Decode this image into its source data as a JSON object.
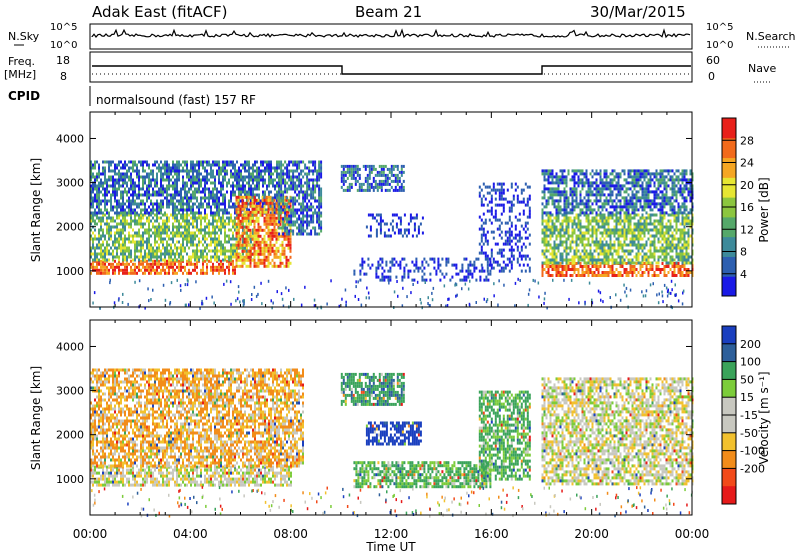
{
  "header": {
    "station": "Adak East (fitACF)",
    "beam": "Beam 21",
    "date": "30/Mar/2015"
  },
  "nsky_panel": {
    "left_label": "N.Sky",
    "left_ticks": [
      "10^5",
      "10^0"
    ],
    "right_ticks": [
      "10^5",
      "10^0"
    ],
    "right_label": "N.Search"
  },
  "freq_panel": {
    "left_label_1": "Freq.",
    "left_label_2": "[MHz]",
    "left_ticks": [
      "18",
      "8"
    ],
    "right_ticks": [
      "60",
      "0"
    ],
    "right_label": "Nave"
  },
  "cpid": {
    "label": "CPID",
    "text": "normalsound (fast) 157 RF"
  },
  "x_axis": {
    "ticks": [
      "00:00",
      "04:00",
      "08:00",
      "12:00",
      "16:00",
      "20:00",
      "00:00"
    ],
    "title": "Time UT"
  },
  "colors": {
    "power_scale": [
      "#1a1ae6",
      "#2d5fb0",
      "#3d8a9a",
      "#55a86a",
      "#8cc63f",
      "#e6e633",
      "#f5a623",
      "#f26a1b",
      "#e8201a"
    ],
    "velocity_scale": [
      "#1a3fbf",
      "#2d5f9a",
      "#3aa35a",
      "#7ccc3a",
      "#c8c8c0",
      "#c8c8c0",
      "#f2c12e",
      "#f28c1a",
      "#f24a1a",
      "#e61a1a"
    ]
  },
  "chart_data": [
    {
      "type": "heatmap",
      "panel": "power",
      "ylabel": "Slant Range [km]",
      "y_ticks": [
        "1000",
        "2000",
        "3000",
        "4000"
      ],
      "ylim": [
        180,
        4600
      ],
      "xlim_hours": [
        0,
        24
      ],
      "colorbar_label": "Power [dB]",
      "colorbar_ticks": [
        "4",
        "8",
        "12",
        "16",
        "20",
        "24",
        "28"
      ],
      "colorbar_range": [
        0,
        32
      ],
      "regions": [
        {
          "t0": 0.0,
          "t1": 5.8,
          "r0": 950,
          "r1": 1250,
          "level": "high"
        },
        {
          "t0": 0.0,
          "t1": 6.5,
          "r0": 1250,
          "r1": 2300,
          "level": "mid"
        },
        {
          "t0": 0.0,
          "t1": 7.5,
          "r0": 2300,
          "r1": 3500,
          "level": "low"
        },
        {
          "t0": 5.8,
          "t1": 8.0,
          "r0": 1100,
          "r1": 2700,
          "level": "high_band"
        },
        {
          "t0": 7.5,
          "t1": 9.2,
          "r0": 1800,
          "r1": 3500,
          "level": "low"
        },
        {
          "t0": 10.0,
          "t1": 12.5,
          "r0": 2800,
          "r1": 3400,
          "level": "low"
        },
        {
          "t0": 11.0,
          "t1": 13.3,
          "r0": 1800,
          "r1": 2300,
          "level": "weak"
        },
        {
          "t0": 10.5,
          "t1": 16.0,
          "r0": 800,
          "r1": 1300,
          "level": "weak"
        },
        {
          "t0": 15.5,
          "t1": 17.5,
          "r0": 1000,
          "r1": 3000,
          "level": "weak"
        },
        {
          "t0": 18.0,
          "t1": 24.0,
          "r0": 900,
          "r1": 1200,
          "level": "high"
        },
        {
          "t0": 18.0,
          "t1": 24.0,
          "r0": 1200,
          "r1": 2300,
          "level": "mid"
        },
        {
          "t0": 18.0,
          "t1": 24.0,
          "r0": 2300,
          "r1": 3300,
          "level": "low"
        }
      ]
    },
    {
      "type": "heatmap",
      "panel": "velocity",
      "ylabel": "Slant Range [km]",
      "y_ticks": [
        "1000",
        "2000",
        "3000",
        "4000"
      ],
      "ylim": [
        180,
        4600
      ],
      "xlim_hours": [
        0,
        24
      ],
      "colorbar_label": "Velocity [m s⁻¹]",
      "colorbar_ticks": [
        "200",
        "100",
        "50",
        "15",
        "-15",
        "-50",
        "-100",
        "-200"
      ],
      "colorbar_range": [
        -250,
        250
      ],
      "regions": [
        {
          "t0": 0.0,
          "t1": 8.0,
          "r0": 850,
          "r1": 1300,
          "v": 0
        },
        {
          "t0": 0.0,
          "t1": 8.5,
          "r0": 1300,
          "r1": 3500,
          "v": -30
        },
        {
          "t0": 10.0,
          "t1": 12.5,
          "r0": 2700,
          "r1": 3400,
          "v": 60
        },
        {
          "t0": 11.0,
          "t1": 13.2,
          "r0": 1800,
          "r1": 2300,
          "v": 150
        },
        {
          "t0": 10.5,
          "t1": 16.0,
          "r0": 800,
          "r1": 1400,
          "v": 40
        },
        {
          "t0": 15.5,
          "t1": 17.5,
          "r0": 1000,
          "r1": 3000,
          "v": 40
        },
        {
          "t0": 18.0,
          "t1": 24.0,
          "r0": 900,
          "r1": 3300,
          "v": 0
        }
      ]
    }
  ]
}
